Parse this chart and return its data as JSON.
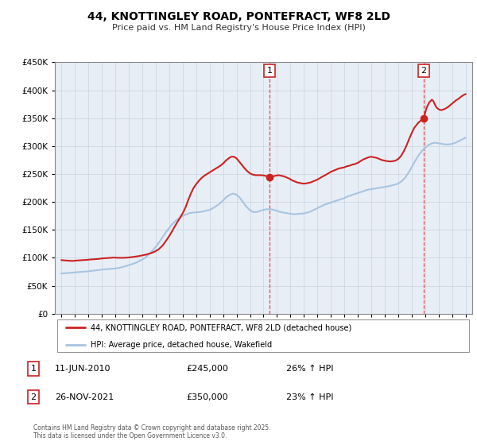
{
  "title": "44, KNOTTINGLEY ROAD, PONTEFRACT, WF8 2LD",
  "subtitle": "Price paid vs. HM Land Registry's House Price Index (HPI)",
  "hpi_color": "#a8c4e0",
  "price_color": "#cc2222",
  "marker_color": "#cc2222",
  "background_color": "#ffffff",
  "chart_bg_color": "#e8eef6",
  "grid_color": "#c8d4e0",
  "legend_label_price": "44, KNOTTINGLEY ROAD, PONTEFRACT, WF8 2LD (detached house)",
  "legend_label_hpi": "HPI: Average price, detached house, Wakefield",
  "annotation1": {
    "num": "1",
    "date": "11-JUN-2010",
    "price": "£245,000",
    "pct": "26% ↑ HPI",
    "x_year": 2010.45,
    "y_val": 245000
  },
  "annotation2": {
    "num": "2",
    "date": "26-NOV-2021",
    "price": "£350,000",
    "pct": "23% ↑ HPI",
    "x_year": 2021.9,
    "y_val": 350000
  },
  "vline1_x": 2010.45,
  "vline2_x": 2021.9,
  "ylim": [
    0,
    450000
  ],
  "xlim": [
    1994.5,
    2025.5
  ],
  "yticks": [
    0,
    50000,
    100000,
    150000,
    200000,
    250000,
    300000,
    350000,
    400000,
    450000
  ],
  "xticks": [
    1995,
    1996,
    1997,
    1998,
    1999,
    2000,
    2001,
    2002,
    2003,
    2004,
    2005,
    2006,
    2007,
    2008,
    2009,
    2010,
    2011,
    2012,
    2013,
    2014,
    2015,
    2016,
    2017,
    2018,
    2019,
    2020,
    2021,
    2022,
    2023,
    2024,
    2025
  ],
  "footer_text": "Contains HM Land Registry data © Crown copyright and database right 2025.\nThis data is licensed under the Open Government Licence v3.0.",
  "hpi_data": [
    [
      1995.0,
      72000
    ],
    [
      1995.25,
      72500
    ],
    [
      1995.5,
      73000
    ],
    [
      1995.75,
      73500
    ],
    [
      1996.0,
      74000
    ],
    [
      1996.25,
      74500
    ],
    [
      1996.5,
      75000
    ],
    [
      1996.75,
      75500
    ],
    [
      1997.0,
      76000
    ],
    [
      1997.25,
      76800
    ],
    [
      1997.5,
      77500
    ],
    [
      1997.75,
      78200
    ],
    [
      1998.0,
      79000
    ],
    [
      1998.25,
      79500
    ],
    [
      1998.5,
      80000
    ],
    [
      1998.75,
      80500
    ],
    [
      1999.0,
      81000
    ],
    [
      1999.25,
      82000
    ],
    [
      1999.5,
      83500
    ],
    [
      1999.75,
      85000
    ],
    [
      2000.0,
      87000
    ],
    [
      2000.25,
      89000
    ],
    [
      2000.5,
      91000
    ],
    [
      2000.75,
      94000
    ],
    [
      2001.0,
      97000
    ],
    [
      2001.25,
      101000
    ],
    [
      2001.5,
      107000
    ],
    [
      2001.75,
      113000
    ],
    [
      2002.0,
      120000
    ],
    [
      2002.25,
      128000
    ],
    [
      2002.5,
      137000
    ],
    [
      2002.75,
      146000
    ],
    [
      2003.0,
      154000
    ],
    [
      2003.25,
      161000
    ],
    [
      2003.5,
      167000
    ],
    [
      2003.75,
      171000
    ],
    [
      2004.0,
      175000
    ],
    [
      2004.25,
      178000
    ],
    [
      2004.5,
      180000
    ],
    [
      2004.75,
      181000
    ],
    [
      2005.0,
      181500
    ],
    [
      2005.25,
      182000
    ],
    [
      2005.5,
      183000
    ],
    [
      2005.75,
      184500
    ],
    [
      2006.0,
      186000
    ],
    [
      2006.25,
      189000
    ],
    [
      2006.5,
      193000
    ],
    [
      2006.75,
      197000
    ],
    [
      2007.0,
      203000
    ],
    [
      2007.25,
      209000
    ],
    [
      2007.5,
      213000
    ],
    [
      2007.75,
      215000
    ],
    [
      2008.0,
      213000
    ],
    [
      2008.25,
      207000
    ],
    [
      2008.5,
      199000
    ],
    [
      2008.75,
      191000
    ],
    [
      2009.0,
      185000
    ],
    [
      2009.25,
      182000
    ],
    [
      2009.5,
      182000
    ],
    [
      2009.75,
      184000
    ],
    [
      2010.0,
      186000
    ],
    [
      2010.25,
      187000
    ],
    [
      2010.5,
      187000
    ],
    [
      2010.75,
      186000
    ],
    [
      2011.0,
      184000
    ],
    [
      2011.25,
      182000
    ],
    [
      2011.5,
      181000
    ],
    [
      2011.75,
      180000
    ],
    [
      2012.0,
      179000
    ],
    [
      2012.25,
      178000
    ],
    [
      2012.5,
      178500
    ],
    [
      2012.75,
      179000
    ],
    [
      2013.0,
      179500
    ],
    [
      2013.25,
      181000
    ],
    [
      2013.5,
      183000
    ],
    [
      2013.75,
      186000
    ],
    [
      2014.0,
      189000
    ],
    [
      2014.25,
      192000
    ],
    [
      2014.5,
      195000
    ],
    [
      2014.75,
      197000
    ],
    [
      2015.0,
      199000
    ],
    [
      2015.25,
      201000
    ],
    [
      2015.5,
      203000
    ],
    [
      2015.75,
      205000
    ],
    [
      2016.0,
      207000
    ],
    [
      2016.25,
      210000
    ],
    [
      2016.5,
      212000
    ],
    [
      2016.75,
      214000
    ],
    [
      2017.0,
      216000
    ],
    [
      2017.25,
      218000
    ],
    [
      2017.5,
      220000
    ],
    [
      2017.75,
      222000
    ],
    [
      2018.0,
      223000
    ],
    [
      2018.25,
      224000
    ],
    [
      2018.5,
      225000
    ],
    [
      2018.75,
      226000
    ],
    [
      2019.0,
      227000
    ],
    [
      2019.25,
      228000
    ],
    [
      2019.5,
      229500
    ],
    [
      2019.75,
      231000
    ],
    [
      2020.0,
      233000
    ],
    [
      2020.25,
      237000
    ],
    [
      2020.5,
      243000
    ],
    [
      2020.75,
      252000
    ],
    [
      2021.0,
      262000
    ],
    [
      2021.25,
      273000
    ],
    [
      2021.5,
      283000
    ],
    [
      2021.75,
      291000
    ],
    [
      2022.0,
      297000
    ],
    [
      2022.25,
      302000
    ],
    [
      2022.5,
      305000
    ],
    [
      2022.75,
      306000
    ],
    [
      2023.0,
      305000
    ],
    [
      2023.25,
      304000
    ],
    [
      2023.5,
      303000
    ],
    [
      2023.75,
      303000
    ],
    [
      2024.0,
      304000
    ],
    [
      2024.25,
      306000
    ],
    [
      2024.5,
      309000
    ],
    [
      2024.75,
      312000
    ],
    [
      2025.0,
      315000
    ]
  ],
  "price_data": [
    [
      1995.0,
      96000
    ],
    [
      1995.2,
      95500
    ],
    [
      1995.5,
      95000
    ],
    [
      1995.8,
      94500
    ],
    [
      1996.0,
      95000
    ],
    [
      1996.3,
      95500
    ],
    [
      1996.6,
      96000
    ],
    [
      1996.9,
      96500
    ],
    [
      1997.1,
      97000
    ],
    [
      1997.4,
      97500
    ],
    [
      1997.7,
      98000
    ],
    [
      1998.0,
      99000
    ],
    [
      1998.3,
      99500
    ],
    [
      1998.6,
      100000
    ],
    [
      1998.9,
      100500
    ],
    [
      1999.1,
      100200
    ],
    [
      1999.4,
      100000
    ],
    [
      1999.7,
      100200
    ],
    [
      1999.9,
      100500
    ],
    [
      2000.1,
      101000
    ],
    [
      2000.4,
      102000
    ],
    [
      2000.7,
      103000
    ],
    [
      2001.0,
      104500
    ],
    [
      2001.3,
      106000
    ],
    [
      2001.6,
      108000
    ],
    [
      2001.9,
      111000
    ],
    [
      2002.2,
      115000
    ],
    [
      2002.5,
      122000
    ],
    [
      2002.8,
      132000
    ],
    [
      2003.1,
      143000
    ],
    [
      2003.4,
      156000
    ],
    [
      2003.7,
      168000
    ],
    [
      2004.0,
      180000
    ],
    [
      2004.2,
      190000
    ],
    [
      2004.4,
      203000
    ],
    [
      2004.6,
      215000
    ],
    [
      2004.8,
      225000
    ],
    [
      2005.0,
      232000
    ],
    [
      2005.2,
      238000
    ],
    [
      2005.4,
      243000
    ],
    [
      2005.6,
      247000
    ],
    [
      2005.8,
      250000
    ],
    [
      2006.0,
      253000
    ],
    [
      2006.2,
      256000
    ],
    [
      2006.4,
      259000
    ],
    [
      2006.6,
      262000
    ],
    [
      2006.8,
      265000
    ],
    [
      2007.0,
      269000
    ],
    [
      2007.2,
      274000
    ],
    [
      2007.4,
      278000
    ],
    [
      2007.6,
      281000
    ],
    [
      2007.8,
      281000
    ],
    [
      2008.0,
      278000
    ],
    [
      2008.2,
      272000
    ],
    [
      2008.4,
      266000
    ],
    [
      2008.6,
      260000
    ],
    [
      2008.8,
      255000
    ],
    [
      2009.0,
      251000
    ],
    [
      2009.2,
      249000
    ],
    [
      2009.4,
      248000
    ],
    [
      2009.6,
      248000
    ],
    [
      2009.8,
      248000
    ],
    [
      2010.0,
      247500
    ],
    [
      2010.45,
      245000
    ],
    [
      2010.7,
      246000
    ],
    [
      2010.9,
      247000
    ],
    [
      2011.1,
      248000
    ],
    [
      2011.3,
      247000
    ],
    [
      2011.5,
      246000
    ],
    [
      2011.7,
      244000
    ],
    [
      2011.9,
      242000
    ],
    [
      2012.1,
      239000
    ],
    [
      2012.3,
      237000
    ],
    [
      2012.5,
      235000
    ],
    [
      2012.7,
      234000
    ],
    [
      2012.9,
      233000
    ],
    [
      2013.1,
      233000
    ],
    [
      2013.3,
      234000
    ],
    [
      2013.5,
      235000
    ],
    [
      2013.7,
      237000
    ],
    [
      2014.0,
      240000
    ],
    [
      2014.2,
      243000
    ],
    [
      2014.5,
      247000
    ],
    [
      2014.8,
      251000
    ],
    [
      2015.0,
      254000
    ],
    [
      2015.2,
      256000
    ],
    [
      2015.4,
      258000
    ],
    [
      2015.6,
      260000
    ],
    [
      2015.8,
      261000
    ],
    [
      2016.0,
      262000
    ],
    [
      2016.2,
      264000
    ],
    [
      2016.4,
      265000
    ],
    [
      2016.6,
      267000
    ],
    [
      2016.8,
      268000
    ],
    [
      2017.0,
      270000
    ],
    [
      2017.2,
      273000
    ],
    [
      2017.4,
      276000
    ],
    [
      2017.6,
      278000
    ],
    [
      2017.8,
      280000
    ],
    [
      2018.0,
      281000
    ],
    [
      2018.2,
      280000
    ],
    [
      2018.4,
      279000
    ],
    [
      2018.6,
      277000
    ],
    [
      2018.8,
      275000
    ],
    [
      2019.0,
      274000
    ],
    [
      2019.2,
      273000
    ],
    [
      2019.4,
      272500
    ],
    [
      2019.6,
      273000
    ],
    [
      2019.8,
      274000
    ],
    [
      2020.0,
      277000
    ],
    [
      2020.2,
      282000
    ],
    [
      2020.4,
      290000
    ],
    [
      2020.6,
      300000
    ],
    [
      2020.8,
      312000
    ],
    [
      2021.0,
      323000
    ],
    [
      2021.2,
      333000
    ],
    [
      2021.5,
      342000
    ],
    [
      2021.9,
      350000
    ],
    [
      2022.1,
      368000
    ],
    [
      2022.3,
      378000
    ],
    [
      2022.5,
      383000
    ],
    [
      2022.6,
      381000
    ],
    [
      2022.7,
      376000
    ],
    [
      2022.8,
      371000
    ],
    [
      2022.9,
      368000
    ],
    [
      2023.0,
      366000
    ],
    [
      2023.1,
      365000
    ],
    [
      2023.2,
      364500
    ],
    [
      2023.3,
      365000
    ],
    [
      2023.5,
      367000
    ],
    [
      2023.7,
      370000
    ],
    [
      2023.9,
      374000
    ],
    [
      2024.1,
      378000
    ],
    [
      2024.3,
      382000
    ],
    [
      2024.5,
      385000
    ],
    [
      2024.7,
      389000
    ],
    [
      2024.9,
      392000
    ],
    [
      2025.0,
      393000
    ]
  ]
}
